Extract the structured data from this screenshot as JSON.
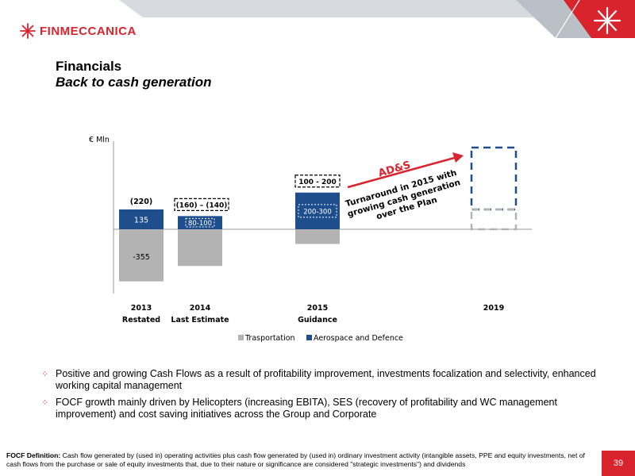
{
  "header": {
    "logo_text": "FINMECCANICA",
    "accent": "#d9232d"
  },
  "title": "Financials",
  "subtitle": "Back to cash generation",
  "chart_data": {
    "type": "bar",
    "stacked": true,
    "unit_label": "€ Mln",
    "categories": [
      {
        "year": "2013",
        "sub": "Restated"
      },
      {
        "year": "2014",
        "sub": "Last Estimate"
      },
      {
        "year": "2015",
        "sub": "Guidance"
      },
      {
        "year": "2019",
        "sub": ""
      }
    ],
    "series": [
      {
        "name": "Trasportation",
        "color": "#b3b3b3",
        "values": [
          -355,
          -250,
          -100,
          null
        ]
      },
      {
        "name": "Aerospace and Defence",
        "color": "#1f4e8c",
        "values": [
          135,
          90,
          250,
          null
        ]
      }
    ],
    "totals": [
      "(220)",
      "(160) – (140)",
      "100 - 200",
      ""
    ],
    "segment_labels": {
      "transport_2013": "-355",
      "ad_2013": "135",
      "ad_2014": "80-100",
      "ad_2015": "200-300"
    },
    "annotation": {
      "heading": "AD&S",
      "text": [
        "Turnaround in 2015 with",
        "growing cash generation",
        "over the Plan"
      ]
    },
    "grid": false,
    "legend_position": "bottom"
  },
  "bullets": [
    "Positive and growing Cash Flows as a result of profitability improvement, investments focalization and selectivity, enhanced working capital management",
    "FOCF growth mainly driven by Helicopters (increasing EBITA), SES (recovery of profitability and WC management improvement) and cost saving initiatives across the Group and Corporate"
  ],
  "footer": {
    "label": "FOCF Definition:",
    "text": " Cash flow generated by (used in) operating activities plus cash flow generated by (used in) ordinary investment activity (intangible assets, PPE and equity investments, net of cash flows from the purchase or sale of equity investments that, due to their nature or significance are considered \"strategic investments\") and dividends"
  },
  "page_number": "39"
}
